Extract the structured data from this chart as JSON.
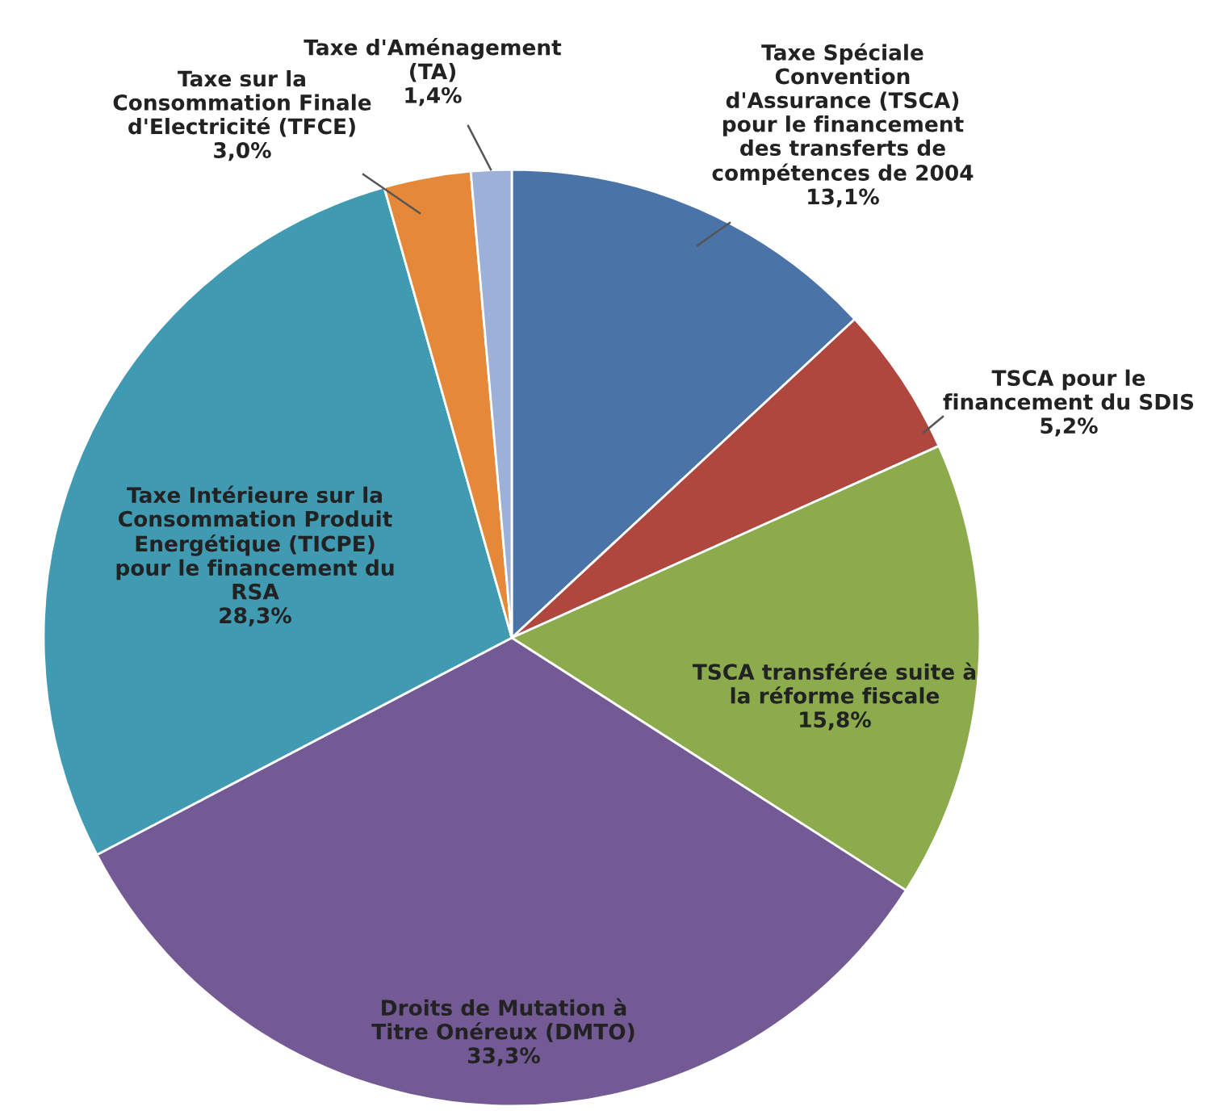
{
  "chart_data": {
    "type": "pie",
    "categories": [
      "Taxe Spéciale Convention d'Assurance (TSCA) pour le financement des transferts de compétences de 2004",
      "TSCA pour le financement du SDIS",
      "TSCA transférée suite à la réforme fiscale",
      "Droits de Mutation à Titre Onéreux (DMTO)",
      "Taxe Intérieure sur la Consommation Produit Energétique (TICPE) pour le financement du RSA",
      "Taxe sur la Consommation Finale d'Electricité (TFCE)",
      "Taxe d'Aménagement (TA)"
    ],
    "values": [
      13.1,
      5.2,
      15.8,
      33.3,
      28.3,
      3.0,
      1.4
    ],
    "value_labels": [
      "13,1%",
      "5,2%",
      "15,8%",
      "33,3%",
      "28,3%",
      "3,0%",
      "1,4%"
    ],
    "colors": [
      "#4a73a8",
      "#b0473f",
      "#8bab4c",
      "#735a94",
      "#3f9ab2",
      "#e6883a",
      "#9bb1d9"
    ],
    "legend": false
  }
}
